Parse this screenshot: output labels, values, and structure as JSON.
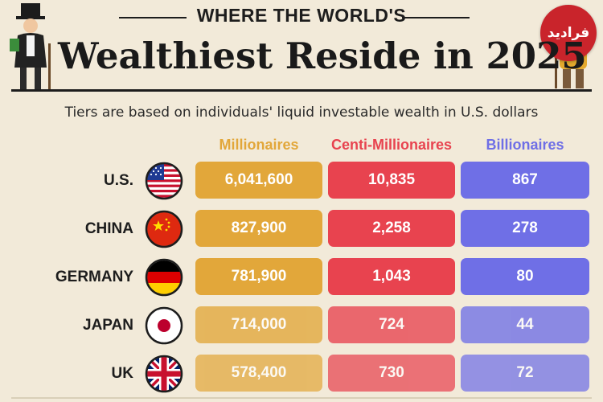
{
  "chart_data": {
    "type": "table",
    "kicker": "WHERE THE WORLD'S",
    "title": "Wealthiest Reside in 2025",
    "subtitle": "Tiers are based on individuals' liquid investable wealth in U.S. dollars",
    "columns": [
      {
        "name": "Millionaires",
        "color": "#e2a73a"
      },
      {
        "name": "Centi-Millionaires",
        "color": "#e8434f"
      },
      {
        "name": "Billionaires",
        "color": "#6f6fe6"
      }
    ],
    "rows": [
      {
        "country": "U.S.",
        "flag": "us-flag-icon",
        "values": [
          "6,041,600",
          "10,835",
          "867"
        ]
      },
      {
        "country": "CHINA",
        "flag": "china-flag-icon",
        "values": [
          "827,900",
          "2,258",
          "278"
        ]
      },
      {
        "country": "GERMANY",
        "flag": "germany-flag-icon",
        "values": [
          "781,900",
          "1,043",
          "80"
        ]
      },
      {
        "country": "JAPAN",
        "flag": "japan-flag-icon",
        "values": [
          "714,000",
          "724",
          "44"
        ]
      },
      {
        "country": "UK",
        "flag": "uk-flag-icon",
        "values": [
          "578,400",
          "730",
          "72"
        ]
      }
    ]
  },
  "watermark": "فرادید"
}
